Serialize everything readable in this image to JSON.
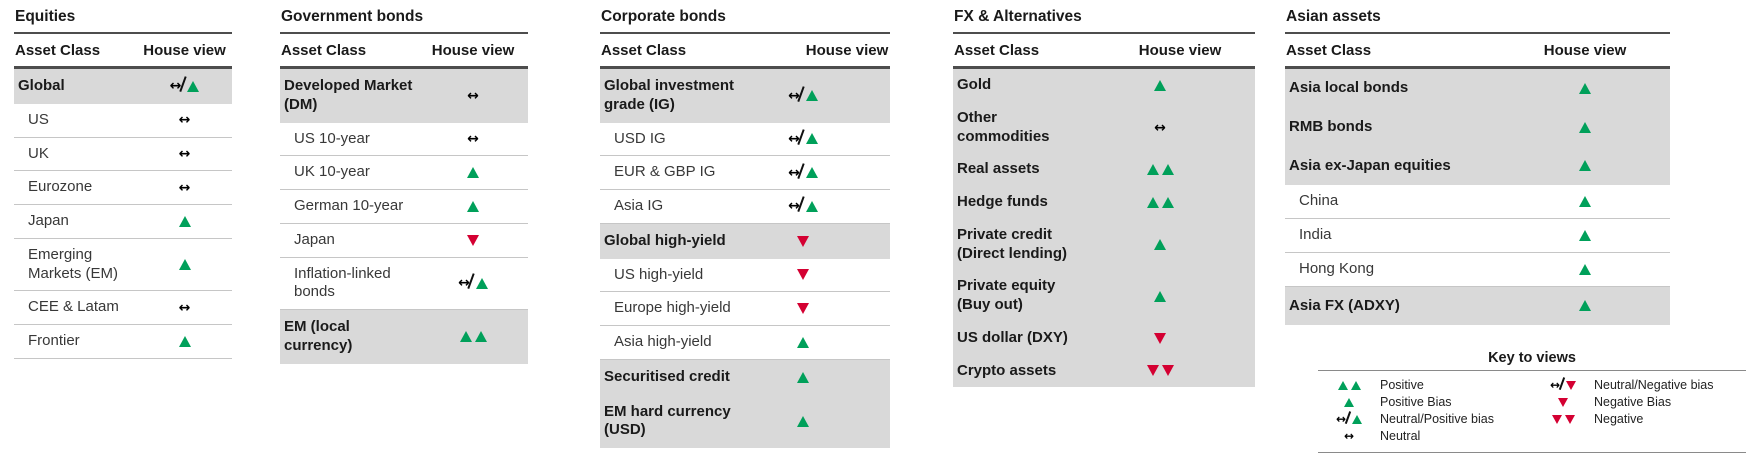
{
  "colors": {
    "positive_green": "#00a05a",
    "negative_red": "#d40032",
    "neutral_black": "#000000",
    "category_row_gray": "#d9d9d9"
  },
  "column_headers": {
    "asset_class": "Asset Class",
    "house_view": "House view"
  },
  "view_codes": {
    "positive": "double-up-triangle",
    "positive_bias": "up-triangle",
    "neutral_positive": "slashed-arrow-up-triangle",
    "neutral": "left-right-arrow",
    "neutral_negative": "slashed-arrow-down-triangle",
    "negative_bias": "down-triangle",
    "negative": "double-down-triangle"
  },
  "tables": [
    {
      "title": "Equities",
      "rows": [
        {
          "label": "Global",
          "view": "neutral_positive",
          "category": true
        },
        {
          "label": "US",
          "view": "neutral",
          "category": false
        },
        {
          "label": "UK",
          "view": "neutral",
          "category": false
        },
        {
          "label": "Eurozone",
          "view": "neutral",
          "category": false
        },
        {
          "label": "Japan",
          "view": "positive_bias",
          "category": false
        },
        {
          "label": "Emerging Markets (EM)",
          "view": "positive_bias",
          "category": false
        },
        {
          "label": "CEE & Latam",
          "view": "neutral",
          "category": false
        },
        {
          "label": "Frontier",
          "view": "positive_bias",
          "category": false
        }
      ]
    },
    {
      "title": "Government bonds",
      "rows": [
        {
          "label": "Developed Market (DM)",
          "view": "neutral",
          "category": true
        },
        {
          "label": "US 10-year",
          "view": "neutral",
          "category": false
        },
        {
          "label": "UK 10-year",
          "view": "positive_bias",
          "category": false
        },
        {
          "label": "German 10-year",
          "view": "positive_bias",
          "category": false
        },
        {
          "label": "Japan",
          "view": "negative_bias",
          "category": false
        },
        {
          "label": "Inflation-linked bonds",
          "view": "neutral_positive",
          "category": false
        },
        {
          "label": "EM (local currency)",
          "view": "positive",
          "category": true
        }
      ]
    },
    {
      "title": "Corporate bonds",
      "rows": [
        {
          "label": "Global investment grade (IG)",
          "view": "neutral_positive",
          "category": true
        },
        {
          "label": "USD IG",
          "view": "neutral_positive",
          "category": false
        },
        {
          "label": "EUR & GBP IG",
          "view": "neutral_positive",
          "category": false
        },
        {
          "label": "Asia IG",
          "view": "neutral_positive",
          "category": false
        },
        {
          "label": "Global high-yield",
          "view": "negative_bias",
          "category": true
        },
        {
          "label": "US high-yield",
          "view": "negative_bias",
          "category": false
        },
        {
          "label": "Europe high-yield",
          "view": "negative_bias",
          "category": false
        },
        {
          "label": "Asia high-yield",
          "view": "positive_bias",
          "category": false
        },
        {
          "label": "Securitised credit",
          "view": "positive_bias",
          "category": true
        },
        {
          "label": "EM hard currency (USD)",
          "view": "positive_bias",
          "category": true
        }
      ]
    },
    {
      "title": "FX & Alternatives",
      "rows": [
        {
          "label": "Gold",
          "view": "positive_bias",
          "category": true
        },
        {
          "label": "Other commodities",
          "view": "neutral",
          "category": true
        },
        {
          "label": "Real assets",
          "view": "positive",
          "category": true
        },
        {
          "label": "Hedge funds",
          "view": "positive",
          "category": true
        },
        {
          "label": "Private credit (Direct lending)",
          "view": "positive_bias",
          "category": true
        },
        {
          "label": "Private equity (Buy out)",
          "view": "positive_bias",
          "category": true
        },
        {
          "label": "US dollar (DXY)",
          "view": "negative_bias",
          "category": true
        },
        {
          "label": "Crypto assets",
          "view": "negative",
          "category": true
        }
      ]
    },
    {
      "title": "Asian assets",
      "rows": [
        {
          "label": "Asia local bonds",
          "view": "positive_bias",
          "category": true
        },
        {
          "label": "RMB bonds",
          "view": "positive_bias",
          "category": true
        },
        {
          "label": "Asia ex-Japan equities",
          "view": "positive_bias",
          "category": true
        },
        {
          "label": "China",
          "view": "positive_bias",
          "category": false
        },
        {
          "label": "India",
          "view": "positive_bias",
          "category": false
        },
        {
          "label": "Hong Kong",
          "view": "positive_bias",
          "category": false
        },
        {
          "label": "Asia FX (ADXY)",
          "view": "positive_bias",
          "category": true
        }
      ]
    }
  ],
  "legend": {
    "title": "Key to views",
    "left": [
      {
        "view": "positive",
        "label": "Positive"
      },
      {
        "view": "positive_bias",
        "label": "Positive Bias"
      },
      {
        "view": "neutral_positive",
        "label": "Neutral/Positive bias"
      },
      {
        "view": "neutral",
        "label": "Neutral"
      }
    ],
    "right": [
      {
        "view": "neutral_negative",
        "label": "Neutral/Negative bias"
      },
      {
        "view": "negative_bias",
        "label": "Negative Bias"
      },
      {
        "view": "negative",
        "label": "Negative"
      }
    ]
  }
}
